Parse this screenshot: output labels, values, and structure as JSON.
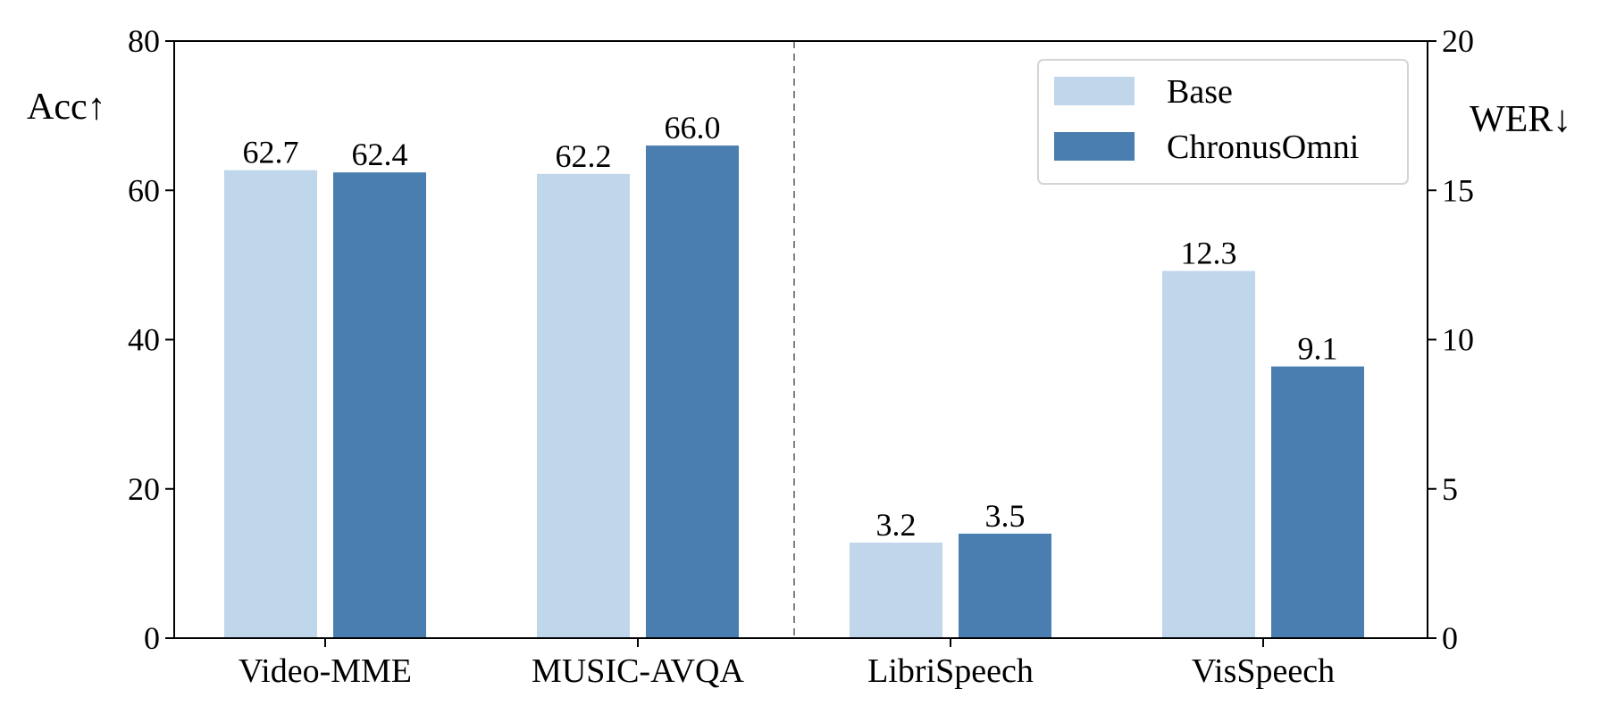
{
  "chart_data": {
    "type": "bar",
    "categories": [
      "Video-MME",
      "MUSIC-AVQA",
      "LibriSpeech",
      "VisSpeech"
    ],
    "category_axis": [
      "left",
      "left",
      "right",
      "right"
    ],
    "series": [
      {
        "name": "Base",
        "color": "#c0d6ea",
        "values": [
          62.7,
          62.2,
          3.2,
          12.3
        ],
        "labels": [
          "62.7",
          "62.2",
          "3.2",
          "12.3"
        ]
      },
      {
        "name": "ChronusOmni",
        "color": "#4a7eb0",
        "values": [
          62.4,
          66.0,
          3.5,
          9.1
        ],
        "labels": [
          "62.4",
          "66.0",
          "3.5",
          "9.1"
        ]
      }
    ],
    "left_axis": {
      "label": "Acc↑",
      "ylim": [
        0,
        80
      ],
      "ticks": [
        0,
        20,
        40,
        60,
        80
      ],
      "tick_labels": [
        "0",
        "20",
        "40",
        "60",
        "80"
      ]
    },
    "right_axis": {
      "label": "WER↓",
      "ylim": [
        0,
        20
      ],
      "ticks": [
        0,
        5,
        10,
        15,
        20
      ],
      "tick_labels": [
        "0",
        "5",
        "10",
        "15",
        "20"
      ]
    },
    "divider": "dashed, between MUSIC-AVQA and LibriSpeech",
    "legend_position": "top-right",
    "grid": false,
    "title": ""
  }
}
